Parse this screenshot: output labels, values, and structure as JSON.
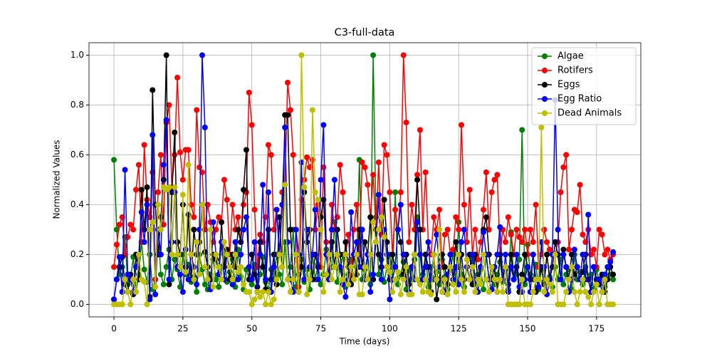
{
  "chart_data": {
    "type": "line",
    "title": "C3-full-data",
    "xlabel": "Time (days)",
    "ylabel": "Normalized Values",
    "x": [
      0,
      1,
      2,
      3,
      4,
      5,
      6,
      7,
      8,
      9,
      10,
      11,
      12,
      13,
      14,
      15,
      16,
      17,
      18,
      19,
      20,
      21,
      22,
      23,
      24,
      25,
      26,
      27,
      28,
      29,
      30,
      31,
      32,
      33,
      34,
      35,
      36,
      37,
      38,
      39,
      40,
      41,
      42,
      43,
      44,
      45,
      46,
      47,
      48,
      49,
      50,
      51,
      52,
      53,
      54,
      55,
      56,
      57,
      58,
      59,
      60,
      61,
      62,
      63,
      64,
      65,
      66,
      67,
      68,
      69,
      70,
      71,
      72,
      73,
      74,
      75,
      76,
      77,
      78,
      79,
      80,
      81,
      82,
      83,
      84,
      85,
      86,
      87,
      88,
      89,
      90,
      91,
      92,
      93,
      94,
      95,
      96,
      97,
      98,
      99,
      100,
      101,
      102,
      103,
      104,
      105,
      106,
      107,
      108,
      109,
      110,
      111,
      112,
      113,
      114,
      115,
      116,
      117,
      118,
      119,
      120,
      121,
      122,
      123,
      124,
      125,
      126,
      127,
      128,
      129,
      130,
      131,
      132,
      133,
      134,
      135,
      136,
      137,
      138,
      139,
      140,
      141,
      142,
      143,
      144,
      145,
      146,
      147,
      148,
      149,
      150,
      151,
      152,
      153,
      154,
      155,
      156,
      157,
      158,
      159,
      160,
      161,
      162,
      163,
      164,
      165,
      166,
      167,
      168,
      169,
      170,
      171,
      172,
      173,
      174,
      175,
      176,
      177,
      178,
      179,
      180,
      181
    ],
    "series": [
      {
        "name": "Algae",
        "color": "#008000",
        "values": [
          0.58,
          0.3,
          0.12,
          0.15,
          0.27,
          0.08,
          0.1,
          0.19,
          0.05,
          0.12,
          0.25,
          0.14,
          0.09,
          0.2,
          0.06,
          0.1,
          0.3,
          0.12,
          0.08,
          0.15,
          0.22,
          0.1,
          0.18,
          0.14,
          0.07,
          0.2,
          0.12,
          0.16,
          0.09,
          0.11,
          0.05,
          0.2,
          0.14,
          0.08,
          0.06,
          0.12,
          0.18,
          0.1,
          0.07,
          0.15,
          0.2,
          0.09,
          0.13,
          0.18,
          0.07,
          0.22,
          0.11,
          0.06,
          0.14,
          0.1,
          0.08,
          0.16,
          0.05,
          0.12,
          0.19,
          0.09,
          0.06,
          0.14,
          0.1,
          0.2,
          0.12,
          0.08,
          0.25,
          0.1,
          0.15,
          0.3,
          0.07,
          0.12,
          0.18,
          0.09,
          0.14,
          0.06,
          0.2,
          0.1,
          0.16,
          0.08,
          0.12,
          0.22,
          0.1,
          0.15,
          0.33,
          0.09,
          0.14,
          0.2,
          0.07,
          0.12,
          0.18,
          0.1,
          0.15,
          0.58,
          0.1,
          0.14,
          0.2,
          0.08,
          1.0,
          0.35,
          0.12,
          0.18,
          0.09,
          0.15,
          0.2,
          0.1,
          0.45,
          0.08,
          0.12,
          0.17,
          0.06,
          0.14,
          0.1,
          0.18,
          0.35,
          0.09,
          0.12,
          0.2,
          0.07,
          0.15,
          0.1,
          0.13,
          0.08,
          0.18,
          0.11,
          0.06,
          0.14,
          0.2,
          0.09,
          0.33,
          0.12,
          0.07,
          0.15,
          0.1,
          0.18,
          0.08,
          0.12,
          0.14,
          0.06,
          0.2,
          0.1,
          0.15,
          0.08,
          0.12,
          0.17,
          0.09,
          0.14,
          0.06,
          0.29,
          0.1,
          0.12,
          0.18,
          0.7,
          0.08,
          0.24,
          0.12,
          0.1,
          0.16,
          0.06,
          0.14,
          0.09,
          0.2,
          0.11,
          0.07,
          0.15,
          0.1,
          0.18,
          0.08,
          0.12,
          0.14,
          0.06,
          0.2,
          0.1,
          0.13,
          0.08,
          0.15,
          0.1,
          0.12,
          0.06,
          0.14,
          0.09,
          0.11,
          0.07,
          0.15,
          0.12,
          0.1
        ]
      },
      {
        "name": "Rotifers",
        "color": "#ff0000",
        "values": [
          0.15,
          0.24,
          0.32,
          0.35,
          0.2,
          0.27,
          0.32,
          0.3,
          0.46,
          0.56,
          0.25,
          0.64,
          0.42,
          0.35,
          0.53,
          0.1,
          0.45,
          0.6,
          0.32,
          0.73,
          0.8,
          0.47,
          0.6,
          0.91,
          0.61,
          0.5,
          0.62,
          0.62,
          0.4,
          0.35,
          0.78,
          0.55,
          0.53,
          0.3,
          0.4,
          0.33,
          0.25,
          0.3,
          0.35,
          0.33,
          0.5,
          0.42,
          0.2,
          0.4,
          0.3,
          0.35,
          0.25,
          0.4,
          0.45,
          0.85,
          0.72,
          0.38,
          0.15,
          0.28,
          0.25,
          0.35,
          0.64,
          0.6,
          0.3,
          0.38,
          0.2,
          0.45,
          0.48,
          0.89,
          0.78,
          0.6,
          0.3,
          0.07,
          0.42,
          0.5,
          0.59,
          0.55,
          0.58,
          0.3,
          0.4,
          0.15,
          0.55,
          0.25,
          0.1,
          0.4,
          0.3,
          0.35,
          0.56,
          0.45,
          0.2,
          0.28,
          0.1,
          0.3,
          0.4,
          0.2,
          0.57,
          0.55,
          0.48,
          0.35,
          0.52,
          0.3,
          0.57,
          0.28,
          0.64,
          0.6,
          0.45,
          0.2,
          0.38,
          0.3,
          0.45,
          1.0,
          0.73,
          0.25,
          0.4,
          0.3,
          0.52,
          0.7,
          0.3,
          0.53,
          0.25,
          0.2,
          0.35,
          0.3,
          0.38,
          0.15,
          0.28,
          0.3,
          0.2,
          0.22,
          0.35,
          0.3,
          0.72,
          0.4,
          0.25,
          0.46,
          0.2,
          0.3,
          0.18,
          0.25,
          0.38,
          0.53,
          0.3,
          0.45,
          0.5,
          0.52,
          0.2,
          0.3,
          0.25,
          0.35,
          0.28,
          0.2,
          0.3,
          0.27,
          0.25,
          0.3,
          0.2,
          0.3,
          0.25,
          0.4,
          0.15,
          0.2,
          0.3,
          0.25,
          0.22,
          0.2,
          0.2,
          0.25,
          0.45,
          0.55,
          0.6,
          0.22,
          0.3,
          0.38,
          0.37,
          0.48,
          0.28,
          0.25,
          0.3,
          0.2,
          0.22,
          0.15,
          0.3,
          0.28,
          0.2,
          0.22,
          0.18,
          0.2
        ]
      },
      {
        "name": "Eggs",
        "color": "#000000",
        "values": [
          0.02,
          0.1,
          0.15,
          0.19,
          0.08,
          0.05,
          0.12,
          0.04,
          0.2,
          0.1,
          0.46,
          0.3,
          0.47,
          0.03,
          0.86,
          0.4,
          0.2,
          0.35,
          0.5,
          1.0,
          0.08,
          0.45,
          0.69,
          0.25,
          0.2,
          0.4,
          0.15,
          0.36,
          0.1,
          0.3,
          0.2,
          0.25,
          0.4,
          0.21,
          0.15,
          0.1,
          0.2,
          0.18,
          0.12,
          0.33,
          0.15,
          0.22,
          0.1,
          0.2,
          0.15,
          0.3,
          0.25,
          0.46,
          0.62,
          0.1,
          0.2,
          0.12,
          0.07,
          0.25,
          0.15,
          0.06,
          0.3,
          0.1,
          0.2,
          0.08,
          0.35,
          0.15,
          0.76,
          0.76,
          0.3,
          0.1,
          0.2,
          0.05,
          0.15,
          0.45,
          0.25,
          0.3,
          0.1,
          0.2,
          0.15,
          0.35,
          0.42,
          0.2,
          0.1,
          0.25,
          0.15,
          0.3,
          0.2,
          0.1,
          0.25,
          0.15,
          0.08,
          0.2,
          0.12,
          0.3,
          0.15,
          0.25,
          0.2,
          0.35,
          0.1,
          0.3,
          0.2,
          0.15,
          0.42,
          0.25,
          0.1,
          0.2,
          0.15,
          0.3,
          0.25,
          0.12,
          0.2,
          0.08,
          0.15,
          0.2,
          0.5,
          0.3,
          0.1,
          0.2,
          0.15,
          0.05,
          0.2,
          0.02,
          0.1,
          0.2,
          0.15,
          0.08,
          0.2,
          0.1,
          0.25,
          0.15,
          0.2,
          0.1,
          0.15,
          0.2,
          0.08,
          0.2,
          0.1,
          0.15,
          0.3,
          0.35,
          0.2,
          0.1,
          0.15,
          0.05,
          0.2,
          0.1,
          0.15,
          0.08,
          0.2,
          0.1,
          0.15,
          0.05,
          0.12,
          0.2,
          0.15,
          0.1,
          0.2,
          0.05,
          0.1,
          0.15,
          0.08,
          0.2,
          0.1,
          0.15,
          0.25,
          0.2,
          0.1,
          0.22,
          0.15,
          0.1,
          0.2,
          0.12,
          0.15,
          0.1,
          0.13,
          0.2,
          0.1,
          0.05,
          0.15,
          0.1,
          0.08,
          0.12,
          0.05,
          0.1,
          0.15,
          0.12
        ]
      },
      {
        "name": "Egg Ratio",
        "color": "#0000ff",
        "values": [
          0.02,
          0.1,
          0.19,
          0.05,
          0.54,
          0.12,
          0.1,
          0.05,
          0.15,
          0.2,
          0.37,
          0.25,
          0.4,
          0.02,
          0.68,
          0.04,
          0.3,
          0.2,
          0.56,
          0.74,
          0.1,
          0.25,
          0.45,
          0.15,
          0.12,
          0.05,
          0.22,
          0.1,
          0.2,
          0.15,
          0.08,
          0.3,
          1.0,
          0.71,
          0.1,
          0.06,
          0.33,
          0.2,
          0.12,
          0.25,
          0.1,
          0.2,
          0.15,
          0.08,
          0.25,
          0.1,
          0.2,
          0.3,
          0.35,
          0.15,
          0.1,
          0.25,
          0.05,
          0.2,
          0.48,
          0.1,
          0.45,
          0.05,
          0.15,
          0.38,
          0.2,
          0.4,
          0.71,
          0.25,
          0.1,
          0.05,
          0.3,
          0.2,
          0.57,
          0.1,
          0.3,
          0.15,
          0.2,
          0.38,
          0.1,
          0.5,
          0.72,
          0.2,
          0.1,
          0.3,
          0.5,
          0.2,
          0.15,
          0.08,
          0.03,
          0.1,
          0.37,
          0.2,
          0.25,
          0.15,
          0.3,
          0.1,
          0.2,
          0.05,
          0.12,
          0.25,
          0.44,
          0.1,
          0.3,
          0.2,
          0.02,
          0.1,
          0.15,
          0.3,
          0.4,
          0.2,
          0.1,
          0.05,
          0.15,
          0.1,
          0.33,
          0.2,
          0.1,
          0.15,
          0.25,
          0.1,
          0.2,
          0.28,
          0.15,
          0.1,
          0.05,
          0.12,
          0.2,
          0.1,
          0.15,
          0.08,
          0.25,
          0.3,
          0.15,
          0.1,
          0.2,
          0.1,
          0.05,
          0.15,
          0.29,
          0.2,
          0.1,
          0.06,
          0.15,
          0.2,
          0.31,
          0.1,
          0.2,
          0.05,
          0.15,
          0.1,
          0.2,
          0.07,
          0.05,
          0.1,
          0.15,
          0.05,
          0.2,
          0.1,
          0.07,
          0.25,
          0.15,
          0.04,
          0.1,
          0.2,
          0.82,
          0.3,
          0.1,
          0.2,
          0.15,
          0.05,
          0.1,
          0.22,
          0.15,
          0.1,
          0.2,
          0.1,
          0.36,
          0.05,
          0.15,
          0.08,
          0.1,
          0.05,
          0.12,
          0.15,
          0.17,
          0.21
        ]
      },
      {
        "name": "Dead Animals",
        "color": "#bfbf00",
        "values": [
          0,
          0,
          0,
          0,
          0.1,
          0.05,
          0,
          0.1,
          0.05,
          0.2,
          0.1,
          0.09,
          0,
          0.3,
          0.33,
          0.07,
          0.4,
          0.3,
          0.47,
          0.46,
          0.47,
          0.2,
          0.47,
          0.2,
          0.15,
          0.44,
          0.13,
          0.56,
          0.2,
          0.1,
          0.25,
          0.12,
          0.4,
          0.15,
          0.1,
          0.3,
          0.07,
          0.2,
          0.15,
          0.1,
          0.25,
          0.2,
          0.15,
          0.1,
          0.2,
          0.13,
          0.15,
          0.08,
          0.05,
          0.05,
          0,
          0.02,
          0.05,
          0.03,
          0.05,
          0,
          0.05,
          0,
          0.02,
          0.1,
          0.2,
          0.15,
          0.48,
          0.1,
          0.05,
          0.1,
          0.2,
          0.05,
          1.0,
          0.47,
          0.04,
          0.1,
          0.78,
          0.45,
          0.42,
          0.3,
          0.05,
          0.12,
          0.2,
          0.1,
          0.15,
          0.2,
          0.05,
          0.1,
          0.2,
          0.08,
          0.15,
          0.1,
          0.2,
          0.04,
          0.04,
          0.15,
          0.1,
          0.2,
          0.33,
          0.25,
          0.3,
          0.35,
          0.27,
          0.15,
          0.13,
          0.05,
          0.1,
          0.13,
          0.04,
          0.1,
          0.15,
          0.04,
          0.04,
          0.2,
          0.1,
          0.08,
          0.05,
          0.1,
          0.05,
          0.04,
          0.2,
          0.1,
          0.3,
          0.05,
          0.1,
          0.04,
          0.15,
          0.08,
          0.05,
          0.2,
          0.1,
          0.05,
          0.18,
          0.1,
          0.15,
          0.05,
          0.1,
          0.08,
          0.2,
          0.1,
          0.05,
          0.15,
          0.1,
          0.05,
          0.1,
          0.05,
          0.15,
          0,
          0,
          0,
          0,
          0,
          0.1,
          0,
          0,
          0,
          0.05,
          0.1,
          0.1,
          0.71,
          0.05,
          0.1,
          0.08,
          0.05,
          0.2,
          0,
          0,
          0,
          0.05,
          0.1,
          0.15,
          0.05,
          0,
          0.05,
          0.1,
          0.05,
          0.03,
          0,
          0.05,
          0.08,
          0,
          0.05,
          0.1,
          0,
          0,
          0
        ]
      }
    ],
    "xlim": [
      -9.05,
      191.05
    ],
    "xticks": [
      0,
      25,
      50,
      75,
      100,
      125,
      150,
      175
    ],
    "ylim": [
      -0.05,
      1.05
    ],
    "yticks": [
      {
        "value": 0,
        "label": "0.0"
      },
      0.2,
      0.4,
      0.6,
      0.8,
      {
        "value": 1,
        "label": "1.0"
      }
    ],
    "grid": true,
    "legend": "upper right"
  }
}
